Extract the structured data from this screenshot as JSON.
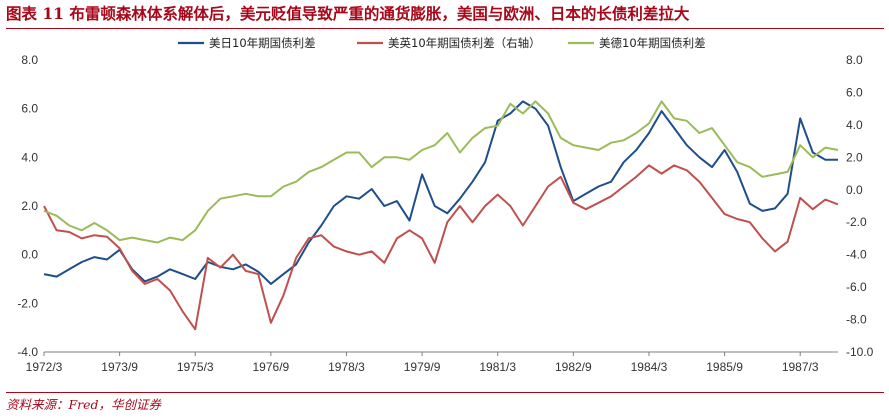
{
  "figure": {
    "title": "图表 11  布雷顿森林体系解体后，美元贬值导致严重的通货膨胀，美国与欧洲、日本的长债利差拉大",
    "source": "资料来源：Fred，华创证券"
  },
  "chart_data": {
    "type": "line",
    "title": "",
    "xlabel": "",
    "ylabel": "",
    "x_tick_labels": [
      "1972/3",
      "1973/9",
      "1975/3",
      "1976/9",
      "1978/3",
      "1979/9",
      "1981/3",
      "1982/9",
      "1984/3",
      "1985/9",
      "1987/3"
    ],
    "x_tick_positions": [
      "1972-03",
      "1973-09",
      "1975-03",
      "1976-09",
      "1978-03",
      "1979-09",
      "1981-03",
      "1982-09",
      "1984-03",
      "1985-09",
      "1987-03"
    ],
    "xlim": [
      "1972-03",
      "1987-12"
    ],
    "y_left": {
      "lim": [
        -4,
        8
      ],
      "ticks": [
        "-4.0",
        "-2.0",
        "0.0",
        "2.0",
        "4.0",
        "6.0",
        "8.0"
      ]
    },
    "y_right": {
      "lim": [
        -10,
        8
      ],
      "ticks": [
        "-10.0",
        "-8.0",
        "-6.0",
        "-4.0",
        "-2.0",
        "0.0",
        "2.0",
        "4.0",
        "6.0",
        "8.0"
      ]
    },
    "grid": false,
    "legend_position": "top",
    "series": [
      {
        "name": "美日10年期国债利差",
        "axis": "left",
        "color": "#1f4e8c",
        "points": [
          [
            "1972-03",
            -0.8
          ],
          [
            "1972-06",
            -0.9
          ],
          [
            "1972-09",
            -0.6
          ],
          [
            "1972-12",
            -0.3
          ],
          [
            "1973-03",
            -0.1
          ],
          [
            "1973-06",
            -0.2
          ],
          [
            "1973-09",
            0.2
          ],
          [
            "1973-12",
            -0.6
          ],
          [
            "1974-03",
            -1.1
          ],
          [
            "1974-06",
            -0.9
          ],
          [
            "1974-09",
            -0.6
          ],
          [
            "1974-12",
            -0.8
          ],
          [
            "1975-03",
            -1.0
          ],
          [
            "1975-06",
            -0.3
          ],
          [
            "1975-09",
            -0.5
          ],
          [
            "1975-12",
            -0.6
          ],
          [
            "1976-03",
            -0.4
          ],
          [
            "1976-06",
            -0.7
          ],
          [
            "1976-09",
            -1.2
          ],
          [
            "1976-12",
            -0.8
          ],
          [
            "1977-03",
            -0.4
          ],
          [
            "1977-06",
            0.5
          ],
          [
            "1977-09",
            1.2
          ],
          [
            "1977-12",
            2.0
          ],
          [
            "1978-03",
            2.4
          ],
          [
            "1978-06",
            2.3
          ],
          [
            "1978-09",
            2.7
          ],
          [
            "1978-12",
            2.0
          ],
          [
            "1979-03",
            2.2
          ],
          [
            "1979-06",
            1.4
          ],
          [
            "1979-09",
            3.3
          ],
          [
            "1979-12",
            2.0
          ],
          [
            "1980-03",
            1.7
          ],
          [
            "1980-06",
            2.3
          ],
          [
            "1980-09",
            3.0
          ],
          [
            "1980-12",
            3.8
          ],
          [
            "1981-03",
            5.5
          ],
          [
            "1981-06",
            5.8
          ],
          [
            "1981-09",
            6.3
          ],
          [
            "1981-12",
            6.0
          ],
          [
            "1982-03",
            5.3
          ],
          [
            "1982-06",
            3.6
          ],
          [
            "1982-09",
            2.2
          ],
          [
            "1982-12",
            2.5
          ],
          [
            "1983-03",
            2.8
          ],
          [
            "1983-06",
            3.0
          ],
          [
            "1983-09",
            3.8
          ],
          [
            "1983-12",
            4.3
          ],
          [
            "1984-03",
            5.0
          ],
          [
            "1984-06",
            5.9
          ],
          [
            "1984-09",
            5.2
          ],
          [
            "1984-12",
            4.5
          ],
          [
            "1985-03",
            4.0
          ],
          [
            "1985-06",
            3.6
          ],
          [
            "1985-09",
            4.3
          ],
          [
            "1985-12",
            3.4
          ],
          [
            "1986-03",
            2.1
          ],
          [
            "1986-06",
            1.8
          ],
          [
            "1986-09",
            1.9
          ],
          [
            "1986-12",
            2.5
          ],
          [
            "1987-03",
            5.6
          ],
          [
            "1987-06",
            4.2
          ],
          [
            "1987-09",
            3.9
          ],
          [
            "1987-12",
            3.9
          ]
        ]
      },
      {
        "name": "美英10年期国债利差（右轴）",
        "axis": "right",
        "color": "#c0504d",
        "points": [
          [
            "1972-03",
            -1.0
          ],
          [
            "1972-06",
            -2.5
          ],
          [
            "1972-09",
            -2.6
          ],
          [
            "1972-12",
            -3.0
          ],
          [
            "1973-03",
            -2.8
          ],
          [
            "1973-06",
            -2.9
          ],
          [
            "1973-09",
            -3.6
          ],
          [
            "1973-12",
            -5.0
          ],
          [
            "1974-03",
            -5.8
          ],
          [
            "1974-06",
            -5.5
          ],
          [
            "1974-09",
            -6.2
          ],
          [
            "1974-12",
            -7.5
          ],
          [
            "1975-03",
            -8.6
          ],
          [
            "1975-06",
            -4.2
          ],
          [
            "1975-09",
            -4.8
          ],
          [
            "1975-12",
            -4.0
          ],
          [
            "1976-03",
            -5.0
          ],
          [
            "1976-06",
            -5.2
          ],
          [
            "1976-09",
            -8.2
          ],
          [
            "1976-12",
            -6.5
          ],
          [
            "1977-03",
            -4.2
          ],
          [
            "1977-06",
            -3.0
          ],
          [
            "1977-09",
            -2.8
          ],
          [
            "1977-12",
            -3.5
          ],
          [
            "1978-03",
            -3.8
          ],
          [
            "1978-06",
            -4.0
          ],
          [
            "1978-09",
            -3.8
          ],
          [
            "1978-12",
            -4.5
          ],
          [
            "1979-03",
            -3.0
          ],
          [
            "1979-06",
            -2.5
          ],
          [
            "1979-09",
            -3.0
          ],
          [
            "1979-12",
            -4.5
          ],
          [
            "1980-03",
            -2.0
          ],
          [
            "1980-06",
            -1.0
          ],
          [
            "1980-09",
            -2.0
          ],
          [
            "1980-12",
            -1.0
          ],
          [
            "1981-03",
            -0.3
          ],
          [
            "1981-06",
            -1.0
          ],
          [
            "1981-09",
            -2.2
          ],
          [
            "1981-12",
            -1.0
          ],
          [
            "1982-03",
            0.2
          ],
          [
            "1982-06",
            0.8
          ],
          [
            "1982-09",
            -0.8
          ],
          [
            "1982-12",
            -1.2
          ],
          [
            "1983-03",
            -0.8
          ],
          [
            "1983-06",
            -0.4
          ],
          [
            "1983-09",
            0.2
          ],
          [
            "1983-12",
            0.8
          ],
          [
            "1984-03",
            1.5
          ],
          [
            "1984-06",
            1.0
          ],
          [
            "1984-09",
            1.5
          ],
          [
            "1984-12",
            1.2
          ],
          [
            "1985-03",
            0.5
          ],
          [
            "1985-06",
            -0.5
          ],
          [
            "1985-09",
            -1.5
          ],
          [
            "1985-12",
            -1.8
          ],
          [
            "1986-03",
            -2.0
          ],
          [
            "1986-06",
            -3.0
          ],
          [
            "1986-09",
            -3.8
          ],
          [
            "1986-12",
            -3.2
          ],
          [
            "1987-03",
            -0.5
          ],
          [
            "1987-06",
            -1.2
          ],
          [
            "1987-09",
            -0.6
          ],
          [
            "1987-12",
            -0.9
          ]
        ]
      },
      {
        "name": "美德10年期国债利差",
        "axis": "left",
        "color": "#9bbb59",
        "points": [
          [
            "1972-03",
            1.8
          ],
          [
            "1972-06",
            1.6
          ],
          [
            "1972-09",
            1.2
          ],
          [
            "1972-12",
            1.0
          ],
          [
            "1973-03",
            1.3
          ],
          [
            "1973-06",
            1.0
          ],
          [
            "1973-09",
            0.6
          ],
          [
            "1973-12",
            0.7
          ],
          [
            "1974-03",
            0.6
          ],
          [
            "1974-06",
            0.5
          ],
          [
            "1974-09",
            0.7
          ],
          [
            "1974-12",
            0.6
          ],
          [
            "1975-03",
            1.0
          ],
          [
            "1975-06",
            1.8
          ],
          [
            "1975-09",
            2.3
          ],
          [
            "1975-12",
            2.4
          ],
          [
            "1976-03",
            2.5
          ],
          [
            "1976-06",
            2.4
          ],
          [
            "1976-09",
            2.4
          ],
          [
            "1976-12",
            2.8
          ],
          [
            "1977-03",
            3.0
          ],
          [
            "1977-06",
            3.4
          ],
          [
            "1977-09",
            3.6
          ],
          [
            "1977-12",
            3.9
          ],
          [
            "1978-03",
            4.2
          ],
          [
            "1978-06",
            4.2
          ],
          [
            "1978-09",
            3.6
          ],
          [
            "1978-12",
            4.0
          ],
          [
            "1979-03",
            4.0
          ],
          [
            "1979-06",
            3.9
          ],
          [
            "1979-09",
            4.3
          ],
          [
            "1979-12",
            4.5
          ],
          [
            "1980-03",
            5.0
          ],
          [
            "1980-06",
            4.2
          ],
          [
            "1980-09",
            4.8
          ],
          [
            "1980-12",
            5.2
          ],
          [
            "1981-03",
            5.3
          ],
          [
            "1981-06",
            6.2
          ],
          [
            "1981-09",
            5.8
          ],
          [
            "1981-12",
            6.3
          ],
          [
            "1982-03",
            5.8
          ],
          [
            "1982-06",
            4.8
          ],
          [
            "1982-09",
            4.5
          ],
          [
            "1982-12",
            4.4
          ],
          [
            "1983-03",
            4.3
          ],
          [
            "1983-06",
            4.6
          ],
          [
            "1983-09",
            4.7
          ],
          [
            "1983-12",
            5.0
          ],
          [
            "1984-03",
            5.4
          ],
          [
            "1984-06",
            6.3
          ],
          [
            "1984-09",
            5.6
          ],
          [
            "1984-12",
            5.5
          ],
          [
            "1985-03",
            5.0
          ],
          [
            "1985-06",
            5.2
          ],
          [
            "1985-09",
            4.5
          ],
          [
            "1985-12",
            3.8
          ],
          [
            "1986-03",
            3.6
          ],
          [
            "1986-06",
            3.2
          ],
          [
            "1986-09",
            3.3
          ],
          [
            "1986-12",
            3.4
          ],
          [
            "1987-03",
            4.5
          ],
          [
            "1987-06",
            4.0
          ],
          [
            "1987-09",
            4.4
          ],
          [
            "1987-12",
            4.3
          ]
        ]
      }
    ]
  }
}
